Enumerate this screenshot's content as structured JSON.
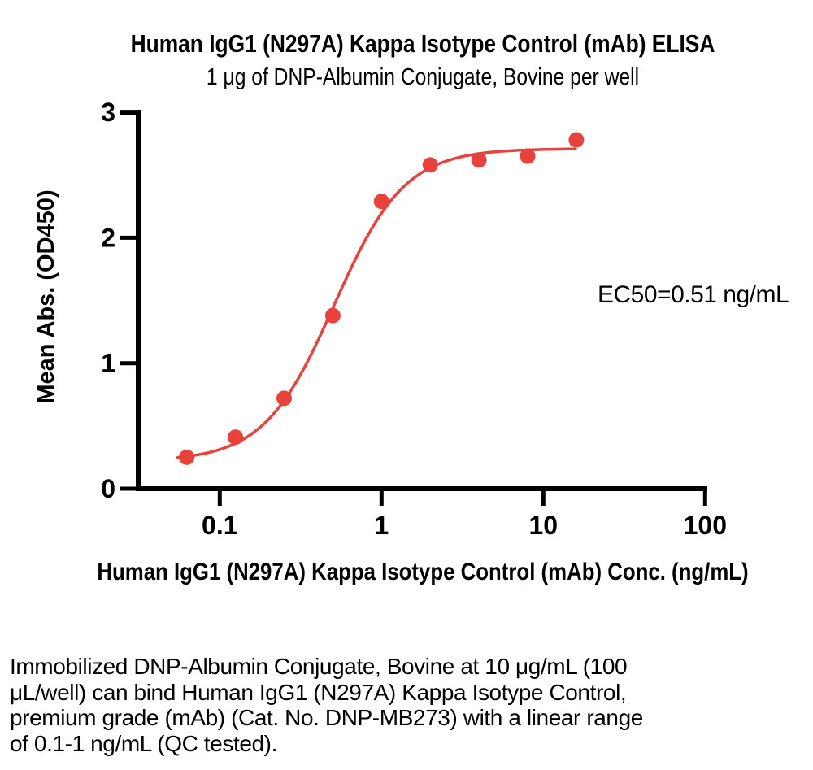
{
  "chart_data": {
    "type": "scatter",
    "title": "Human IgG1 (N297A) Kappa Isotype Control (mAb) ELISA",
    "subtitle": "1 μg of DNP-Albumin Conjugate, Bovine per well",
    "xlabel": "Human IgG1 (N297A) Kappa Isotype Control (mAb) Conc. (ng/mL)",
    "ylabel": "Mean Abs. (OD450)",
    "x_scale": "log",
    "xlim": [
      0.03,
      100
    ],
    "ylim": [
      0,
      3
    ],
    "grid": false,
    "legend": "none",
    "x_ticks": [
      {
        "value": 0.1,
        "label": "0.1"
      },
      {
        "value": 1,
        "label": "1"
      },
      {
        "value": 10,
        "label": "10"
      },
      {
        "value": 100,
        "label": "100"
      }
    ],
    "y_ticks": [
      {
        "value": 0,
        "label": "0"
      },
      {
        "value": 1,
        "label": "1"
      },
      {
        "value": 2,
        "label": "2"
      },
      {
        "value": 3,
        "label": "3"
      }
    ],
    "series": [
      {
        "name": "Human IgG1 (N297A) Kappa Isotype Control (mAb)",
        "marker": "circle",
        "color": "#e8423c",
        "x": [
          0.0625,
          0.125,
          0.25,
          0.5,
          1,
          2,
          4,
          8,
          16
        ],
        "y": [
          0.25,
          0.41,
          0.72,
          1.38,
          2.29,
          2.58,
          2.62,
          2.65,
          2.78
        ]
      }
    ],
    "fit_curve": {
      "model": "4PL",
      "bottom": 0.22,
      "top": 2.71,
      "ec50": 0.51,
      "hill": 2.0,
      "x_start": 0.055,
      "x_end": 15.8,
      "color": "#e8423c"
    },
    "annotation": {
      "text": "EC50=0.51 ng/mL"
    },
    "ec50_value_ng_per_ml": 0.51,
    "axis_color": "#000000"
  },
  "caption": {
    "text": "Immobilized DNP-Albumin Conjugate, Bovine at 10 μg/mL (100\nμL/well) can bind Human IgG1 (N297A) Kappa Isotype Control,\npremium grade (mAb) (Cat. No. DNP-MB273) with a linear range\nof 0.1-1 ng/mL (QC tested)."
  }
}
